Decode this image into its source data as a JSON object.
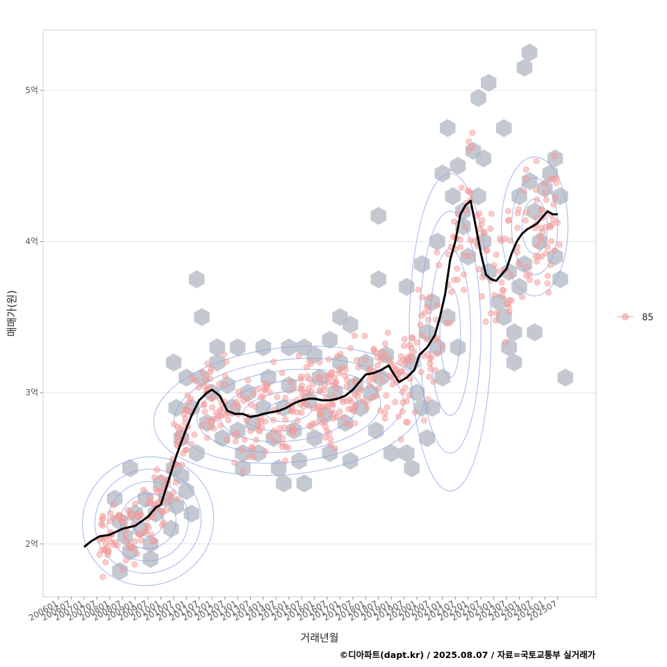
{
  "chart_data": {
    "type": "scatter",
    "xlabel": "거래년월",
    "ylabel": "매매가(원)",
    "caption": "©디아파트(dapt.kr) / 2025.08.07 / 자료=국토교통부 실거래가",
    "x_ticks": [
      "200601",
      "200607",
      "200701",
      "200707",
      "200801",
      "200807",
      "200901",
      "200907",
      "201001",
      "201007",
      "201101",
      "201107",
      "201201",
      "201207",
      "201301",
      "201307",
      "201401",
      "201407",
      "201501",
      "201507",
      "201601",
      "201607",
      "201701",
      "201707",
      "201801",
      "201807",
      "201901",
      "201907",
      "202001",
      "202007",
      "202101",
      "202107",
      "202201",
      "202207",
      "202301",
      "202307",
      "202401",
      "202407",
      "202501",
      "202507"
    ],
    "y_ticks": [
      {
        "value": 2,
        "label": "2억"
      },
      {
        "value": 3,
        "label": "3억"
      },
      {
        "value": 4,
        "label": "4억"
      },
      {
        "value": 5,
        "label": "5억"
      }
    ],
    "xlim": [
      2005.4,
      2027.0
    ],
    "ylim": [
      1.65,
      5.4
    ],
    "legend": {
      "label": "85",
      "position": "right"
    },
    "trend_line": {
      "name": "moving-average",
      "x": [
        2007.0,
        2007.3,
        2007.6,
        2008.0,
        2008.5,
        2009.0,
        2009.5,
        2009.8,
        2010.0,
        2010.3,
        2010.6,
        2010.9,
        2011.2,
        2011.5,
        2011.8,
        2012.0,
        2012.3,
        2012.6,
        2012.9,
        2013.2,
        2013.5,
        2013.8,
        2014.0,
        2014.3,
        2014.6,
        2014.9,
        2015.2,
        2015.5,
        2015.8,
        2016.0,
        2016.3,
        2016.6,
        2016.9,
        2017.2,
        2017.5,
        2017.8,
        2018.0,
        2018.3,
        2018.6,
        2018.9,
        2019.0,
        2019.3,
        2019.6,
        2019.9,
        2020.1,
        2020.4,
        2020.7,
        2020.9,
        2021.1,
        2021.3,
        2021.5,
        2021.7,
        2021.9,
        2022.1,
        2022.3,
        2022.5,
        2022.7,
        2022.9,
        2023.1,
        2023.3,
        2023.5,
        2023.7,
        2023.9,
        2024.1,
        2024.3,
        2024.5,
        2024.7,
        2024.9,
        2025.1,
        2025.3,
        2025.5
      ],
      "y": [
        1.98,
        2.02,
        2.05,
        2.06,
        2.1,
        2.12,
        2.18,
        2.24,
        2.26,
        2.42,
        2.58,
        2.72,
        2.85,
        2.95,
        3.0,
        3.02,
        2.98,
        2.88,
        2.86,
        2.86,
        2.84,
        2.85,
        2.86,
        2.87,
        2.88,
        2.9,
        2.93,
        2.95,
        2.96,
        2.96,
        2.95,
        2.95,
        2.96,
        2.98,
        3.02,
        3.08,
        3.12,
        3.13,
        3.15,
        3.18,
        3.15,
        3.07,
        3.1,
        3.15,
        3.25,
        3.3,
        3.38,
        3.5,
        3.65,
        3.88,
        4.0,
        4.18,
        4.24,
        4.27,
        4.1,
        3.92,
        3.78,
        3.75,
        3.74,
        3.78,
        3.82,
        3.92,
        4.0,
        4.05,
        4.08,
        4.1,
        4.12,
        4.16,
        4.2,
        4.18,
        4.18
      ]
    },
    "hex_cells": [
      [
        2008.2,
        2.3
      ],
      [
        2008.4,
        2.15
      ],
      [
        2008.6,
        2.05
      ],
      [
        2008.8,
        1.95
      ],
      [
        2009.0,
        2.2
      ],
      [
        2009.2,
        2.1
      ],
      [
        2009.4,
        2.3
      ],
      [
        2009.6,
        2.0
      ],
      [
        2009.8,
        2.2
      ],
      [
        2010.0,
        2.4
      ],
      [
        2010.2,
        2.3
      ],
      [
        2010.4,
        2.1
      ],
      [
        2010.6,
        2.25
      ],
      [
        2010.8,
        2.45
      ],
      [
        2010.5,
        2.5
      ],
      [
        2008.4,
        1.82
      ],
      [
        2008.8,
        2.5
      ],
      [
        2009.6,
        1.9
      ],
      [
        2011.0,
        2.35
      ],
      [
        2011.2,
        2.2
      ],
      [
        2010.6,
        2.9
      ],
      [
        2010.8,
        2.7
      ],
      [
        2011.0,
        3.1
      ],
      [
        2011.2,
        2.9
      ],
      [
        2011.4,
        2.6
      ],
      [
        2011.6,
        3.1
      ],
      [
        2011.8,
        2.8
      ],
      [
        2012.0,
        3.0
      ],
      [
        2012.2,
        3.2
      ],
      [
        2012.4,
        2.7
      ],
      [
        2012.6,
        3.05
      ],
      [
        2012.8,
        2.9
      ],
      [
        2013.0,
        2.75
      ],
      [
        2013.2,
        2.6
      ],
      [
        2013.4,
        3.0
      ],
      [
        2013.6,
        2.8
      ],
      [
        2013.8,
        2.6
      ],
      [
        2014.0,
        2.9
      ],
      [
        2014.2,
        3.1
      ],
      [
        2014.4,
        2.7
      ],
      [
        2014.6,
        2.5
      ],
      [
        2014.8,
        2.9
      ],
      [
        2015.0,
        3.05
      ],
      [
        2015.2,
        2.75
      ],
      [
        2015.4,
        2.55
      ],
      [
        2015.6,
        3.3
      ],
      [
        2015.8,
        2.95
      ],
      [
        2016.0,
        2.7
      ],
      [
        2016.2,
        3.1
      ],
      [
        2016.4,
        2.85
      ],
      [
        2016.6,
        2.6
      ],
      [
        2016.8,
        3.0
      ],
      [
        2017.0,
        3.2
      ],
      [
        2017.2,
        2.8
      ],
      [
        2017.4,
        2.55
      ],
      [
        2017.6,
        3.05
      ],
      [
        2017.8,
        2.9
      ],
      [
        2018.0,
        3.2
      ],
      [
        2018.2,
        3.0
      ],
      [
        2018.4,
        2.75
      ],
      [
        2018.6,
        3.1
      ],
      [
        2018.8,
        3.25
      ],
      [
        2019.0,
        2.6
      ],
      [
        2011.4,
        3.75
      ],
      [
        2011.6,
        3.5
      ],
      [
        2010.5,
        3.2
      ],
      [
        2012.2,
        3.3
      ],
      [
        2013.0,
        3.3
      ],
      [
        2014.0,
        3.3
      ],
      [
        2015.0,
        3.3
      ],
      [
        2016.0,
        3.25
      ],
      [
        2017.0,
        3.5
      ],
      [
        2017.4,
        3.45
      ],
      [
        2014.8,
        2.4
      ],
      [
        2015.6,
        2.4
      ],
      [
        2013.2,
        2.5
      ],
      [
        2018.5,
        3.75
      ],
      [
        2018.5,
        4.17
      ],
      [
        2016.6,
        3.35
      ],
      [
        2019.6,
        3.7
      ],
      [
        2019.8,
        3.2
      ],
      [
        2020.0,
        3.0
      ],
      [
        2020.2,
        2.9
      ],
      [
        2020.4,
        3.4
      ],
      [
        2020.6,
        3.6
      ],
      [
        2020.8,
        3.3
      ],
      [
        2021.0,
        3.1
      ],
      [
        2021.2,
        3.5
      ],
      [
        2021.4,
        4.3
      ],
      [
        2021.6,
        4.5
      ],
      [
        2021.8,
        4.1
      ],
      [
        2022.0,
        3.9
      ],
      [
        2022.2,
        4.6
      ],
      [
        2022.4,
        4.3
      ],
      [
        2022.6,
        4.0
      ],
      [
        2022.8,
        3.8
      ],
      [
        2021.2,
        4.75
      ],
      [
        2021.0,
        4.45
      ],
      [
        2020.8,
        4.0
      ],
      [
        2020.6,
        2.9
      ],
      [
        2020.4,
        2.7
      ],
      [
        2019.8,
        2.5
      ],
      [
        2019.6,
        2.6
      ],
      [
        2020.2,
        3.85
      ],
      [
        2021.6,
        3.3
      ],
      [
        2021.8,
        4.2
      ],
      [
        2022.6,
        4.55
      ],
      [
        2022.4,
        4.95
      ],
      [
        2022.8,
        5.05
      ],
      [
        2023.2,
        3.6
      ],
      [
        2023.4,
        3.5
      ],
      [
        2023.6,
        3.3
      ],
      [
        2023.8,
        3.4
      ],
      [
        2024.0,
        3.7
      ],
      [
        2024.2,
        3.85
      ],
      [
        2023.6,
        3.8
      ],
      [
        2023.4,
        4.75
      ],
      [
        2024.0,
        4.3
      ],
      [
        2024.4,
        4.4
      ],
      [
        2024.6,
        4.2
      ],
      [
        2024.8,
        4.0
      ],
      [
        2025.0,
        4.35
      ],
      [
        2025.2,
        4.45
      ],
      [
        2025.4,
        3.9
      ],
      [
        2025.6,
        3.75
      ],
      [
        2025.6,
        4.3
      ],
      [
        2025.4,
        4.55
      ],
      [
        2024.2,
        5.15
      ],
      [
        2024.4,
        5.25
      ],
      [
        2025.8,
        3.1
      ],
      [
        2024.6,
        3.4
      ],
      [
        2023.8,
        3.2
      ]
    ],
    "points_summary": "dense scatter of transactions rising from ~2억 (2007) to ~4.3억 (2025)",
    "series": [
      {
        "name": "85",
        "kind": "scatter",
        "color": "#f08080"
      }
    ],
    "grid": true,
    "contour_color": "#8ea3e6",
    "hex_color": "#b5bcc6",
    "trend_color": "#000000"
  }
}
